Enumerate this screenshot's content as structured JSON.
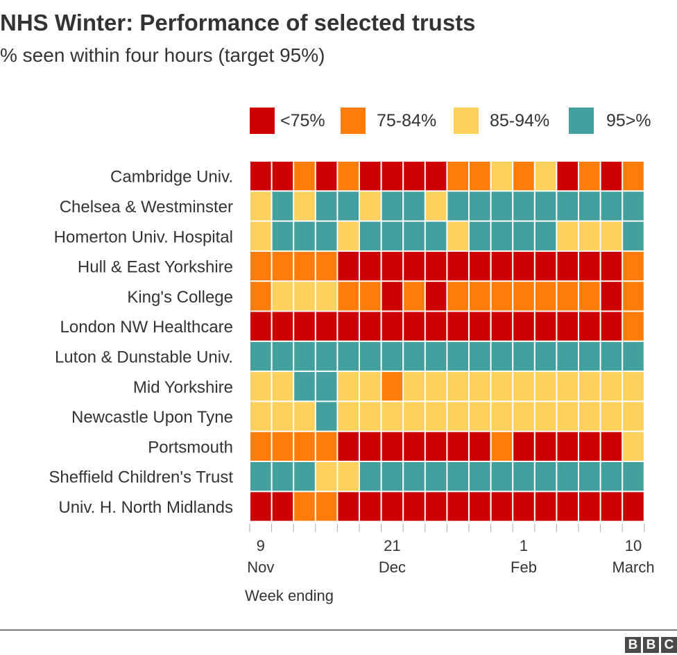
{
  "title": "NHS Winter: Performance of selected trusts",
  "subtitle": "% seen within four hours (target 95%)",
  "footer": {
    "logo_letters": [
      "B",
      "B",
      "C"
    ]
  },
  "chart_data": {
    "type": "heatmap",
    "title": "NHS Winter: Performance of selected trusts",
    "subtitle": "% seen within four hours (target 95%)",
    "xlabel": "Week ending",
    "x_ticks": [
      {
        "week_index": 0,
        "day": "9",
        "month": "Nov"
      },
      {
        "week_index": 6,
        "day": "21",
        "month": "Dec"
      },
      {
        "week_index": 12,
        "day": "1",
        "month": "Feb"
      },
      {
        "week_index": 17,
        "day": "10",
        "month": "March"
      }
    ],
    "weeks_count": 18,
    "legend": [
      {
        "label": "<75%",
        "color": "#cc0000"
      },
      {
        "label": "75-84%",
        "color": "#fd7c0a"
      },
      {
        "label": "85-94%",
        "color": "#fdd15e"
      },
      {
        "label": "95>%",
        "color": "#44a09d"
      }
    ],
    "category_key": "0 = <75%, 1 = 75-84%, 2 = 85-94%, 3 = 95>%",
    "rows": [
      {
        "label": "Cambridge Univ.",
        "values": [
          0,
          0,
          1,
          0,
          1,
          0,
          0,
          0,
          0,
          1,
          1,
          2,
          1,
          2,
          0,
          1,
          0,
          1
        ]
      },
      {
        "label": "Chelsea & Westminster",
        "values": [
          2,
          3,
          2,
          3,
          3,
          2,
          3,
          3,
          2,
          3,
          3,
          3,
          3,
          3,
          3,
          3,
          3,
          3
        ]
      },
      {
        "label": "Homerton Univ. Hospital",
        "values": [
          2,
          3,
          3,
          3,
          2,
          3,
          3,
          3,
          3,
          2,
          3,
          3,
          3,
          3,
          2,
          2,
          2,
          3
        ]
      },
      {
        "label": "Hull & East Yorkshire",
        "values": [
          1,
          1,
          1,
          1,
          0,
          0,
          0,
          0,
          0,
          0,
          0,
          0,
          0,
          0,
          0,
          0,
          0,
          1
        ]
      },
      {
        "label": "King's College",
        "values": [
          1,
          2,
          2,
          2,
          1,
          1,
          0,
          1,
          0,
          1,
          1,
          1,
          1,
          1,
          1,
          1,
          0,
          1
        ]
      },
      {
        "label": "London NW Healthcare",
        "values": [
          0,
          0,
          0,
          0,
          0,
          0,
          0,
          0,
          0,
          0,
          0,
          0,
          0,
          0,
          0,
          0,
          0,
          1
        ]
      },
      {
        "label": "Luton & Dunstable Univ.",
        "values": [
          3,
          3,
          3,
          3,
          3,
          3,
          3,
          3,
          3,
          3,
          3,
          3,
          3,
          3,
          3,
          3,
          3,
          3
        ]
      },
      {
        "label": "Mid Yorkshire",
        "values": [
          2,
          2,
          3,
          3,
          2,
          2,
          1,
          2,
          2,
          2,
          2,
          2,
          2,
          2,
          2,
          2,
          2,
          2
        ]
      },
      {
        "label": "Newcastle Upon Tyne",
        "values": [
          2,
          2,
          2,
          3,
          2,
          2,
          2,
          2,
          2,
          2,
          2,
          2,
          2,
          2,
          2,
          2,
          2,
          2
        ]
      },
      {
        "label": "Portsmouth",
        "values": [
          1,
          1,
          1,
          1,
          0,
          0,
          0,
          0,
          0,
          0,
          0,
          1,
          0,
          0,
          0,
          0,
          0,
          2
        ]
      },
      {
        "label": "Sheffield Children's Trust",
        "values": [
          3,
          3,
          3,
          2,
          2,
          3,
          3,
          3,
          3,
          3,
          3,
          3,
          3,
          3,
          3,
          3,
          3,
          3
        ]
      },
      {
        "label": "Univ. H. North Midlands",
        "values": [
          0,
          0,
          1,
          1,
          0,
          0,
          0,
          0,
          0,
          0,
          0,
          0,
          0,
          0,
          0,
          0,
          0,
          0
        ]
      }
    ]
  }
}
